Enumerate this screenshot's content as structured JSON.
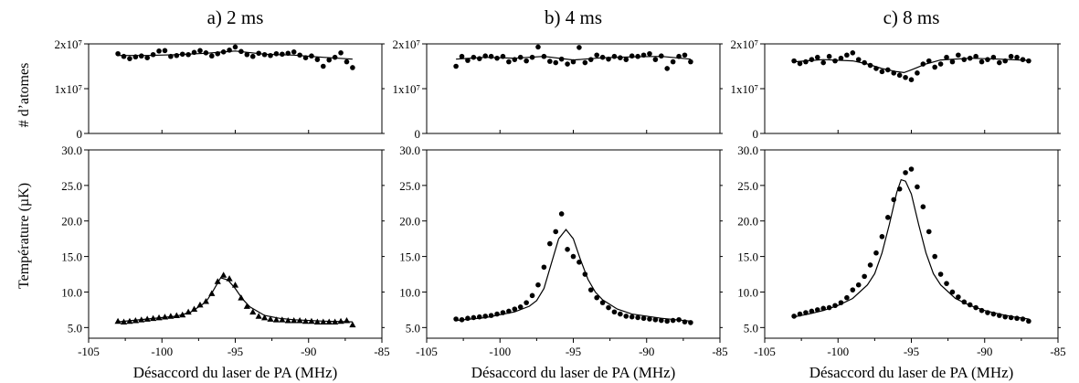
{
  "chart_data": {
    "type": "scatter",
    "y_axis_labels": {
      "atoms": "# d’atomes",
      "temperature": "Température (µK)"
    },
    "panels": [
      {
        "title": "a) 2 ms",
        "xlabel": "Désaccord du laser de PA (MHz)",
        "xlim": [
          -105,
          -85
        ],
        "x_ticks": [
          "-105",
          "-100",
          "-95",
          "-90",
          "-85"
        ],
        "atoms": {
          "ylim": [
            0,
            20000000.0
          ],
          "y_ticks": [
            "0",
            "1x10⁷",
            "2x10⁷"
          ],
          "x": [
            -103,
            -102.6,
            -102.2,
            -101.8,
            -101.4,
            -101,
            -100.6,
            -100.2,
            -99.8,
            -99.4,
            -99,
            -98.6,
            -98.2,
            -97.8,
            -97.4,
            -97,
            -96.6,
            -96.2,
            -95.8,
            -95.4,
            -95,
            -94.6,
            -94.2,
            -93.8,
            -93.4,
            -93,
            -92.6,
            -92.2,
            -91.8,
            -91.4,
            -91,
            -90.6,
            -90.2,
            -89.8,
            -89.4,
            -89,
            -88.6,
            -88.2,
            -87.8,
            -87.4,
            -87
          ],
          "y": [
            17800000.0,
            17200000.0,
            16700000.0,
            17100000.0,
            17300000.0,
            16900000.0,
            17600000.0,
            18400000.0,
            18500000.0,
            17200000.0,
            17400000.0,
            17700000.0,
            17600000.0,
            18100000.0,
            18500000.0,
            18000000.0,
            17300000.0,
            17800000.0,
            18200000.0,
            18600000.0,
            19300000.0,
            18300000.0,
            17600000.0,
            17200000.0,
            17900000.0,
            17600000.0,
            17400000.0,
            17800000.0,
            17700000.0,
            17900000.0,
            18200000.0,
            17500000.0,
            16900000.0,
            17300000.0,
            16500000.0,
            15000000.0,
            16400000.0,
            17000000.0,
            18000000.0,
            16000000.0,
            14700000.0
          ],
          "fit_x": [
            -103,
            -101,
            -99,
            -97,
            -95,
            -93,
            -91,
            -89,
            -87
          ],
          "fit_y": [
            17400000.0,
            17400000.0,
            17600000.0,
            17900000.0,
            18400000.0,
            17700000.0,
            17500000.0,
            17000000.0,
            16600000.0
          ]
        },
        "temperature": {
          "ylim": [
            3.5,
            30
          ],
          "y_ticks": [
            "5.0",
            "10.0",
            "15.0",
            "20.0",
            "25.0",
            "30.0"
          ],
          "marker": "triangle",
          "x": [
            -103,
            -102.6,
            -102.2,
            -101.8,
            -101.4,
            -101,
            -100.6,
            -100.2,
            -99.8,
            -99.4,
            -99,
            -98.6,
            -98.2,
            -97.8,
            -97.4,
            -97,
            -96.6,
            -96.2,
            -95.8,
            -95.4,
            -95,
            -94.6,
            -94.2,
            -93.8,
            -93.4,
            -93,
            -92.6,
            -92.2,
            -91.8,
            -91.4,
            -91,
            -90.6,
            -90.2,
            -89.8,
            -89.4,
            -89,
            -88.6,
            -88.2,
            -87.8,
            -87.4,
            -87
          ],
          "y": [
            5.9,
            5.8,
            5.9,
            6,
            6.1,
            6.2,
            6.3,
            6.4,
            6.5,
            6.6,
            6.7,
            6.8,
            7.2,
            7.6,
            8.2,
            8.7,
            9.8,
            11.5,
            12.4,
            11.9,
            11,
            9.2,
            8,
            7.2,
            6.6,
            6.4,
            6.2,
            6.1,
            6.1,
            6,
            6,
            6,
            5.9,
            5.9,
            5.8,
            5.8,
            5.8,
            5.8,
            5.9,
            6,
            5.4
          ],
          "fit_x": [
            -103,
            -101,
            -99,
            -98,
            -97,
            -96.5,
            -96,
            -95.5,
            -95,
            -94.5,
            -94,
            -93,
            -92,
            -91,
            -89,
            -87
          ],
          "fit_y": [
            5.8,
            6.2,
            6.6,
            7.2,
            8.6,
            10.2,
            12,
            11.7,
            10.5,
            9,
            7.9,
            6.7,
            6.3,
            6.1,
            5.9,
            5.8
          ]
        }
      },
      {
        "title": "b) 4 ms",
        "xlabel": "Désaccord du laser de PA (MHz)",
        "xlim": [
          -105,
          -85
        ],
        "x_ticks": [
          "-105",
          "-100",
          "-95",
          "-90",
          "-85"
        ],
        "atoms": {
          "ylim": [
            0,
            20000000.0
          ],
          "y_ticks": [
            "0",
            "1x10⁷",
            "2x10⁷"
          ],
          "x": [
            -103,
            -102.6,
            -102.2,
            -101.8,
            -101.4,
            -101,
            -100.6,
            -100.2,
            -99.8,
            -99.4,
            -99,
            -98.6,
            -98.2,
            -97.8,
            -97.4,
            -97,
            -96.6,
            -96.2,
            -95.8,
            -95.4,
            -95,
            -94.6,
            -94.2,
            -93.8,
            -93.4,
            -93,
            -92.6,
            -92.2,
            -91.8,
            -91.4,
            -91,
            -90.6,
            -90.2,
            -89.8,
            -89.4,
            -89,
            -88.6,
            -88.2,
            -87.8,
            -87.4,
            -87
          ],
          "y": [
            15000000.0,
            17200000.0,
            16300000.0,
            17000000.0,
            16700000.0,
            17300000.0,
            17200000.0,
            16800000.0,
            17200000.0,
            16000000.0,
            16500000.0,
            17000000.0,
            16200000.0,
            17000000.0,
            19300000.0,
            17200000.0,
            16100000.0,
            15800000.0,
            16600000.0,
            15500000.0,
            16000000.0,
            19200000.0,
            15800000.0,
            16500000.0,
            17500000.0,
            17000000.0,
            16600000.0,
            17200000.0,
            16900000.0,
            16500000.0,
            17300000.0,
            17200000.0,
            17500000.0,
            17800000.0,
            16500000.0,
            17300000.0,
            14500000.0,
            16000000.0,
            17200000.0,
            17500000.0,
            16000000.0
          ],
          "fit_x": [
            -103,
            -101,
            -99,
            -97,
            -95,
            -93,
            -91,
            -89,
            -87
          ],
          "fit_y": [
            16600000.0,
            17000000.0,
            16800000.0,
            17200000.0,
            16400000.0,
            16900000.0,
            17100000.0,
            17200000.0,
            16600000.0
          ]
        },
        "temperature": {
          "ylim": [
            3.5,
            30
          ],
          "y_ticks": [
            "5.0",
            "10.0",
            "15.0",
            "20.0",
            "25.0",
            "30.0"
          ],
          "marker": "circle",
          "x": [
            -103,
            -102.6,
            -102.2,
            -101.8,
            -101.4,
            -101,
            -100.6,
            -100.2,
            -99.8,
            -99.4,
            -99,
            -98.6,
            -98.2,
            -97.8,
            -97.4,
            -97,
            -96.6,
            -96.2,
            -95.8,
            -95.4,
            -95,
            -94.6,
            -94.2,
            -93.8,
            -93.4,
            -93,
            -92.6,
            -92.2,
            -91.8,
            -91.4,
            -91,
            -90.6,
            -90.2,
            -89.8,
            -89.4,
            -89,
            -88.6,
            -88.2,
            -87.8,
            -87.4,
            -87
          ],
          "y": [
            6.2,
            6.1,
            6.3,
            6.4,
            6.5,
            6.6,
            6.7,
            6.9,
            7.1,
            7.3,
            7.6,
            7.9,
            8.5,
            9.5,
            11,
            13.5,
            16.8,
            18.5,
            21,
            16,
            15,
            14.2,
            12.5,
            10.3,
            9.2,
            8.5,
            7.8,
            7.2,
            6.9,
            6.6,
            6.5,
            6.4,
            6.3,
            6.2,
            6.1,
            6,
            5.9,
            6,
            6.1,
            5.8,
            5.7
          ],
          "fit_x": [
            -103,
            -101,
            -99,
            -98,
            -97.5,
            -97,
            -96.5,
            -96,
            -95.5,
            -95,
            -94.5,
            -94,
            -93.5,
            -93,
            -92,
            -91,
            -89,
            -87
          ],
          "fit_y": [
            6,
            6.4,
            7.2,
            8,
            8.8,
            10.5,
            14,
            17.5,
            18.8,
            17.5,
            14.5,
            11.8,
            10,
            8.9,
            7.6,
            6.9,
            6.3,
            5.9
          ]
        }
      },
      {
        "title": "c) 8 ms",
        "xlabel": "Désaccord du laser de PA (MHz)",
        "xlim": [
          -105,
          -85
        ],
        "x_ticks": [
          "-105",
          "-100",
          "-95",
          "-90",
          "-85"
        ],
        "atoms": {
          "ylim": [
            0,
            20000000.0
          ],
          "y_ticks": [
            "0",
            "1x10⁷",
            "2x10⁷"
          ],
          "x": [
            -103,
            -102.6,
            -102.2,
            -101.8,
            -101.4,
            -101,
            -100.6,
            -100.2,
            -99.8,
            -99.4,
            -99,
            -98.6,
            -98.2,
            -97.8,
            -97.4,
            -97,
            -96.6,
            -96.2,
            -95.8,
            -95.4,
            -95,
            -94.6,
            -94.2,
            -93.8,
            -93.4,
            -93,
            -92.6,
            -92.2,
            -91.8,
            -91.4,
            -91,
            -90.6,
            -90.2,
            -89.8,
            -89.4,
            -89,
            -88.6,
            -88.2,
            -87.8,
            -87.4,
            -87
          ],
          "y": [
            16200000.0,
            15600000.0,
            16000000.0,
            16500000.0,
            17000000.0,
            15800000.0,
            17200000.0,
            16200000.0,
            16800000.0,
            17500000.0,
            18000000.0,
            16500000.0,
            15800000.0,
            15200000.0,
            14500000.0,
            13800000.0,
            14200000.0,
            13500000.0,
            13000000.0,
            12500000.0,
            12000000.0,
            13500000.0,
            15500000.0,
            16200000.0,
            14800000.0,
            15500000.0,
            17000000.0,
            16000000.0,
            17500000.0,
            16500000.0,
            16800000.0,
            17200000.0,
            16000000.0,
            16500000.0,
            17000000.0,
            15800000.0,
            16200000.0,
            17200000.0,
            17000000.0,
            16500000.0,
            16200000.0
          ],
          "fit_x": [
            -103,
            -101,
            -99,
            -98,
            -97,
            -96,
            -95.5,
            -95,
            -94,
            -93,
            -91,
            -89,
            -87
          ],
          "fit_y": [
            16000000.0,
            16500000.0,
            16200000.0,
            15500000.0,
            14500000.0,
            13800000.0,
            13600000.0,
            14200000.0,
            15500000.0,
            16400000.0,
            16800000.0,
            16600000.0,
            16300000.0
          ]
        },
        "temperature": {
          "ylim": [
            3.5,
            30
          ],
          "y_ticks": [
            "5.0",
            "10.0",
            "15.0",
            "20.0",
            "25.0",
            "30.0"
          ],
          "marker": "circle",
          "x": [
            -103,
            -102.6,
            -102.2,
            -101.8,
            -101.4,
            -101,
            -100.6,
            -100.2,
            -99.8,
            -99.4,
            -99,
            -98.6,
            -98.2,
            -97.8,
            -97.4,
            -97,
            -96.6,
            -96.2,
            -95.8,
            -95.4,
            -95,
            -94.6,
            -94.2,
            -93.8,
            -93.4,
            -93,
            -92.6,
            -92.2,
            -91.8,
            -91.4,
            -91,
            -90.6,
            -90.2,
            -89.8,
            -89.4,
            -89,
            -88.6,
            -88.2,
            -87.8,
            -87.4,
            -87
          ],
          "y": [
            6.6,
            6.9,
            7.1,
            7.3,
            7.5,
            7.7,
            7.8,
            8.1,
            8.5,
            9.2,
            10.3,
            11,
            12.2,
            13.8,
            15.5,
            17.8,
            20.5,
            23,
            24.5,
            26.8,
            27.3,
            24.8,
            22,
            18.5,
            15,
            12.5,
            11.2,
            10,
            9.3,
            8.6,
            8.2,
            7.8,
            7.4,
            7.1,
            6.9,
            6.7,
            6.5,
            6.4,
            6.3,
            6.2,
            5.9
          ],
          "fit_x": [
            -103,
            -102,
            -101,
            -100,
            -99,
            -98,
            -97.5,
            -97,
            -96.5,
            -96,
            -95.7,
            -95.4,
            -95,
            -94.5,
            -94,
            -93.5,
            -93,
            -92,
            -91,
            -90,
            -89,
            -88,
            -87
          ],
          "fit_y": [
            6.5,
            6.9,
            7.4,
            8.1,
            9.1,
            11,
            12.6,
            15.5,
            19.5,
            24,
            25.8,
            25.6,
            23.8,
            19.5,
            15.5,
            12.6,
            11,
            9.1,
            8.1,
            7.4,
            6.9,
            6.5,
            6.2
          ]
        }
      }
    ]
  }
}
